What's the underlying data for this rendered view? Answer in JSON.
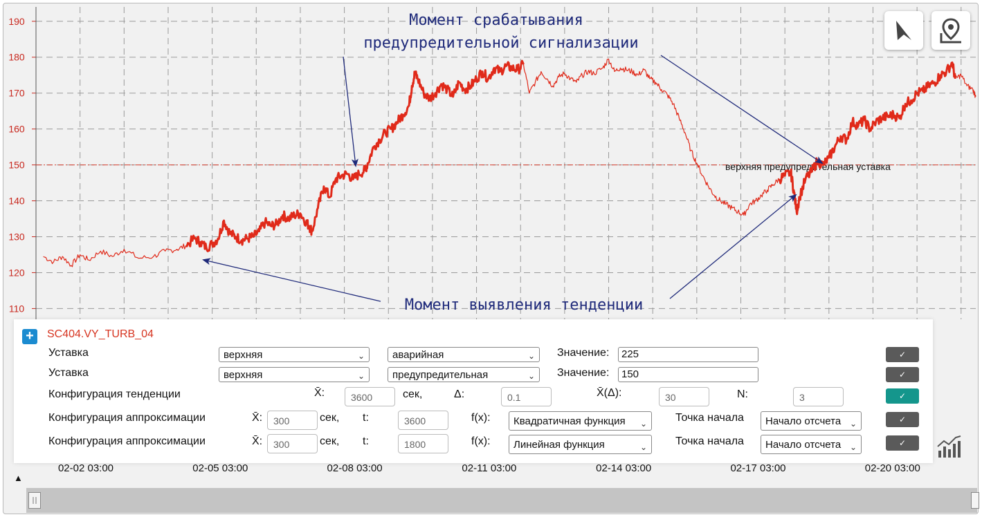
{
  "panel": {
    "add_symbol": "+",
    "series_name": "SC404.VY_TURB_04",
    "rows": [
      {
        "label": "Уставка",
        "side": "верхняя",
        "type": "аварийная",
        "value_label": "Значение:",
        "value": "225"
      },
      {
        "label": "Уставка",
        "side": "верхняя",
        "type": "предупредительная",
        "value_label": "Значение:",
        "value": "150"
      },
      {
        "label": "Конфигурация тенденции",
        "xbar_label": "X̄:",
        "xbar_value": "3600",
        "sec_label": "сек,",
        "delta_label": "Δ:",
        "delta_value": "0.1",
        "xbar_delta_label": "X̄(Δ):",
        "xbar_delta_value": "30",
        "n_label": "N:",
        "n_value": "3"
      },
      {
        "label": "Конфигурация аппроксимации",
        "xbar_label": "X̄:",
        "xbar_value": "300",
        "sec_label": "сек,",
        "t_label": "t:",
        "t_value": "3600",
        "fx_label": "f(x):",
        "fx_value": "Квадратичная функция",
        "start_label": "Точка начала",
        "start_value": "Начало отсчета"
      },
      {
        "label": "Конфигурация аппроксимации",
        "xbar_label": "X̄:",
        "xbar_value": "300",
        "sec_label": "сек,",
        "t_label": "t:",
        "t_value": "1800",
        "fx_label": "f(x):",
        "fx_value": "Линейная функция",
        "start_label": "Точка начала",
        "start_value": "Начало отсчета"
      }
    ]
  },
  "chart_data": {
    "type": "line",
    "title": "",
    "xlabel": "",
    "ylabel": "",
    "x_ticks": [
      "02-02 03:00",
      "02-05 03:00",
      "02-08 03:00",
      "02-11 03:00",
      "02-14 03:00",
      "02-17 03:00",
      "02-20 03:00"
    ],
    "x_range_days": [
      0.25,
      21.2
    ],
    "y_ticks": [
      110,
      120,
      130,
      140,
      150,
      160,
      170,
      180,
      190
    ],
    "ylim": [
      107,
      194
    ],
    "grid": true,
    "line_color": "#e02a1a",
    "threshold": {
      "value": 150,
      "label": "верхняя предупредительная уставка",
      "color": "#d23a2a"
    },
    "annotations": [
      {
        "lines": [
          "Момент срабатывания",
          "предупредительной сигнализации"
        ]
      },
      {
        "lines": [
          "Момент выявления тенденции"
        ]
      }
    ],
    "series": [
      {
        "style": "thin",
        "points": [
          [
            0.25,
            124.5
          ],
          [
            0.6,
            123
          ],
          [
            0.9,
            124.5
          ],
          [
            1.2,
            122
          ],
          [
            1.5,
            125
          ],
          [
            1.8,
            123.5
          ],
          [
            2.2,
            126
          ],
          [
            2.6,
            124.5
          ],
          [
            3.0,
            126.5
          ],
          [
            3.5,
            124
          ],
          [
            4.0,
            124.5
          ],
          [
            4.4,
            126
          ],
          [
            4.8,
            126.5
          ],
          [
            5.1,
            127.5
          ]
        ]
      },
      {
        "style": "bold",
        "points": [
          [
            5.1,
            127.5
          ],
          [
            5.4,
            129.5
          ],
          [
            5.6,
            128.5
          ],
          [
            5.8,
            127
          ],
          [
            6.0,
            128
          ],
          [
            6.2,
            129.5
          ],
          [
            6.4,
            134.5
          ],
          [
            6.6,
            131
          ],
          [
            6.8,
            130
          ],
          [
            7.0,
            129
          ],
          [
            7.2,
            129.5
          ],
          [
            7.4,
            130
          ],
          [
            7.6,
            131.5
          ],
          [
            7.8,
            134
          ],
          [
            8.0,
            133
          ],
          [
            8.2,
            133.5
          ],
          [
            8.4,
            136
          ],
          [
            8.6,
            135
          ],
          [
            8.8,
            136
          ],
          [
            9.0,
            136.5
          ],
          [
            9.2,
            134
          ],
          [
            9.3,
            133
          ],
          [
            9.4,
            131.5
          ],
          [
            9.6,
            138
          ],
          [
            9.8,
            144
          ],
          [
            10.0,
            141
          ],
          [
            10.2,
            146
          ],
          [
            10.4,
            147
          ],
          [
            10.6,
            147.5
          ],
          [
            10.8,
            146
          ],
          [
            11.0,
            147.5
          ],
          [
            11.2,
            148.5
          ],
          [
            11.3,
            150.5
          ],
          [
            11.5,
            155
          ],
          [
            11.7,
            157
          ],
          [
            11.9,
            159
          ],
          [
            12.1,
            160
          ],
          [
            12.3,
            162
          ],
          [
            12.5,
            164
          ],
          [
            12.7,
            166.5
          ],
          [
            12.8,
            172
          ],
          [
            12.9,
            175.5
          ],
          [
            13.0,
            174
          ],
          [
            13.2,
            170
          ],
          [
            13.4,
            168.5
          ],
          [
            13.6,
            170
          ],
          [
            13.8,
            172.5
          ],
          [
            14.0,
            171
          ],
          [
            14.2,
            169
          ],
          [
            14.4,
            173
          ],
          [
            14.6,
            171
          ],
          [
            14.8,
            172
          ],
          [
            15.0,
            174
          ],
          [
            15.2,
            176
          ],
          [
            15.4,
            174
          ],
          [
            15.6,
            177
          ],
          [
            15.8,
            176
          ],
          [
            16.0,
            177.5
          ],
          [
            16.2,
            177
          ],
          [
            16.4,
            176.5
          ],
          [
            16.6,
            178
          ]
        ]
      },
      {
        "style": "thin",
        "points": [
          [
            16.6,
            178
          ],
          [
            16.8,
            170
          ],
          [
            17.0,
            173
          ],
          [
            17.2,
            176
          ],
          [
            17.4,
            174
          ],
          [
            17.6,
            172
          ],
          [
            17.8,
            174.5
          ],
          [
            18.0,
            175.5
          ],
          [
            18.2,
            174
          ],
          [
            18.4,
            173
          ],
          [
            18.6,
            175
          ],
          [
            18.8,
            176
          ],
          [
            19.0,
            175.5
          ],
          [
            19.3,
            177
          ],
          [
            19.5,
            179.5
          ],
          [
            19.7,
            176
          ],
          [
            19.9,
            177
          ],
          [
            20.1,
            176.5
          ],
          [
            20.3,
            176
          ],
          [
            20.5,
            175
          ],
          [
            20.7,
            176.5
          ],
          [
            20.9,
            174
          ],
          [
            21.1,
            173
          ],
          [
            21.3,
            171
          ],
          [
            21.5,
            169.5
          ],
          [
            21.7,
            167
          ],
          [
            21.9,
            163
          ],
          [
            22.1,
            159
          ],
          [
            22.3,
            154
          ],
          [
            22.5,
            150.5
          ],
          [
            22.7,
            147
          ],
          [
            22.9,
            144
          ],
          [
            23.1,
            141.5
          ],
          [
            23.3,
            140
          ],
          [
            23.5,
            139
          ],
          [
            23.7,
            138
          ],
          [
            23.9,
            137
          ],
          [
            24.1,
            136
          ],
          [
            24.3,
            139
          ],
          [
            24.5,
            140
          ],
          [
            24.7,
            141.5
          ],
          [
            24.9,
            143
          ],
          [
            25.1,
            144.5
          ],
          [
            25.3,
            146
          ]
        ]
      },
      {
        "style": "bold",
        "points": [
          [
            25.3,
            146
          ],
          [
            25.5,
            147
          ],
          [
            25.7,
            148
          ],
          [
            25.8,
            143
          ],
          [
            25.9,
            137
          ],
          [
            26.0,
            141
          ],
          [
            26.2,
            146
          ],
          [
            26.4,
            148
          ],
          [
            26.6,
            151
          ],
          [
            26.8,
            150
          ],
          [
            27.0,
            152
          ],
          [
            27.2,
            155
          ],
          [
            27.4,
            158
          ],
          [
            27.6,
            157
          ],
          [
            27.8,
            162
          ],
          [
            28.0,
            161
          ],
          [
            28.2,
            162.5
          ],
          [
            28.4,
            160
          ],
          [
            28.6,
            162
          ],
          [
            28.8,
            163
          ],
          [
            29.0,
            163.5
          ],
          [
            29.2,
            164
          ],
          [
            29.4,
            163
          ],
          [
            29.6,
            167
          ],
          [
            29.8,
            168
          ],
          [
            30.0,
            170
          ],
          [
            30.2,
            170.5
          ],
          [
            30.4,
            172
          ],
          [
            30.6,
            173
          ],
          [
            30.8,
            175
          ],
          [
            31.0,
            176
          ],
          [
            31.2,
            178.5
          ],
          [
            31.3,
            174
          ]
        ]
      },
      {
        "style": "thin",
        "points": [
          [
            31.3,
            174
          ],
          [
            31.5,
            175
          ],
          [
            31.7,
            172
          ],
          [
            31.9,
            171
          ],
          [
            32.0,
            169
          ]
        ]
      }
    ]
  }
}
